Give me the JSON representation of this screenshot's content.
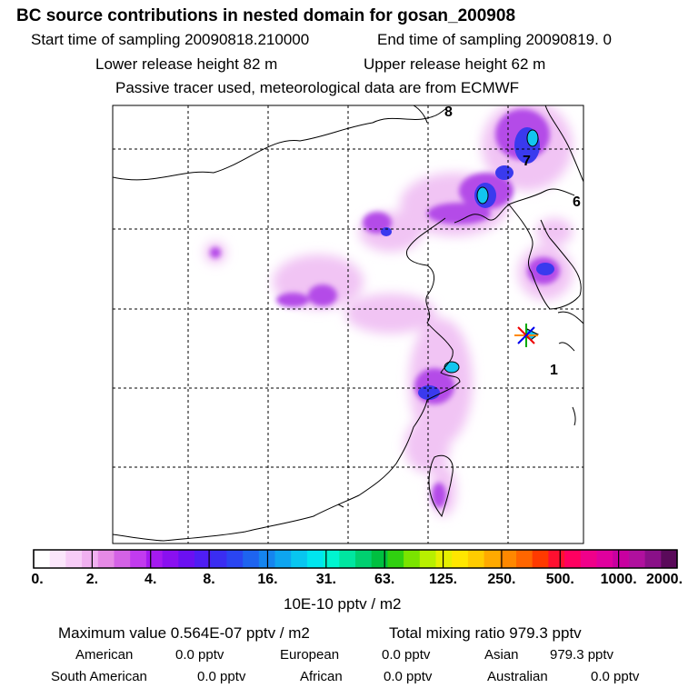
{
  "header": {
    "title": "BC  source contributions in nested domain for gosan_200908",
    "start_label": "Start time of sampling 20090818.210000",
    "end_label": "End time of sampling 20090819.     0",
    "lower_release": "Lower release height   82 m",
    "upper_release": "Upper release height   62 m",
    "tracer_note": "Passive tracer used, meteorological data are from ECMWF"
  },
  "chart_data": {
    "type": "heatmap",
    "title": "BC  source contributions in nested domain for gosan_200908",
    "map_labels": [
      "8",
      "7",
      "6",
      "1"
    ],
    "receptor": "gosan",
    "colorbar": {
      "ticks": [
        "0.",
        "2.",
        "4.",
        "8.",
        "16.",
        "31.",
        "63.",
        "125.",
        "250.",
        "500.",
        "1000.",
        "2000."
      ],
      "colors": [
        "#ffffff",
        "#fbe6fb",
        "#f7ccf7",
        "#f0b0f0",
        "#e68ae6",
        "#d462e6",
        "#c23bef",
        "#a51af0",
        "#8a10f0",
        "#6b10f2",
        "#4f1ef4",
        "#3a2df2",
        "#2a45f2",
        "#1e64f0",
        "#1585ef",
        "#0ea5f0",
        "#08c6f0",
        "#00e6ef",
        "#00f5d0",
        "#00e6a0",
        "#00d070",
        "#00c040",
        "#30d010",
        "#7ae400",
        "#b8f000",
        "#e6f000",
        "#ffe600",
        "#ffcc00",
        "#ffaa00",
        "#ff8800",
        "#ff6600",
        "#ff3a00",
        "#ff1030",
        "#ff0060",
        "#f0008a",
        "#e0009e",
        "#c800a0",
        "#b0109e",
        "#8a1088",
        "#5a0a5a"
      ],
      "units": "10E-10 pptv / m2"
    }
  },
  "summary": {
    "max_label": "Maximum value  0.564E-07 pptv / m2",
    "total_label": "Total mixing ratio      979.3 pptv",
    "american_label": "American",
    "american_value": "0.0 pptv",
    "european_label": "European",
    "european_value": "0.0 pptv",
    "asian_label": "Asian",
    "asian_value": "979.3 pptv",
    "south_american_label": "South American",
    "south_american_value": "0.0 pptv",
    "african_label": "African",
    "african_value": "0.0 pptv",
    "australian_label": "Australian",
    "australian_value": "0.0 pptv"
  }
}
